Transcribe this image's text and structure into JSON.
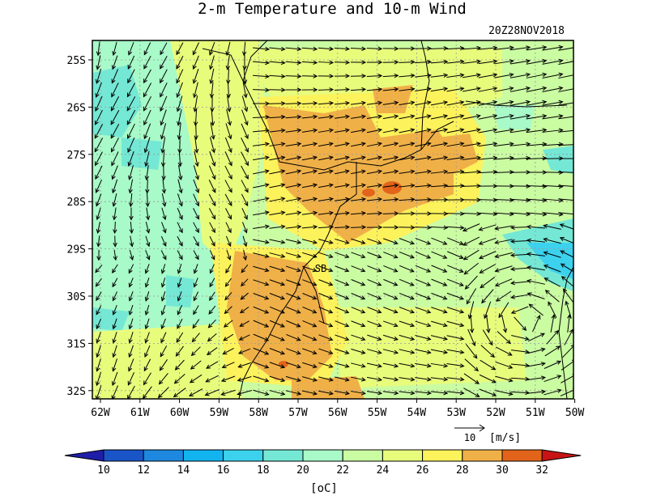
{
  "title": "2-m Temperature and 10-m Wind",
  "timestamp": "20Z28NOV2018",
  "station_label": "SB",
  "lat_labels": [
    "25S",
    "26S",
    "27S",
    "28S",
    "29S",
    "30S",
    "31S",
    "32S"
  ],
  "lon_labels": [
    "62W",
    "61W",
    "60W",
    "59W",
    "58W",
    "57W",
    "56W",
    "55W",
    "54W",
    "53W",
    "52W",
    "51W",
    "50W"
  ],
  "wind_reference": {
    "value": "10",
    "unit": "[m/s]"
  },
  "colorbar": {
    "tick_labels": [
      "10",
      "12",
      "14",
      "16",
      "18",
      "20",
      "22",
      "24",
      "26",
      "28",
      "30",
      "32"
    ],
    "colors": [
      "#1e1ea8",
      "#1a55c8",
      "#1e88e0",
      "#12b4f0",
      "#3cd2ee",
      "#74e8d4",
      "#a8fac8",
      "#cafca2",
      "#e8fc7c",
      "#fcf25c",
      "#f0b048",
      "#e2641a",
      "#c81414"
    ],
    "unit": "[oC]"
  }
}
